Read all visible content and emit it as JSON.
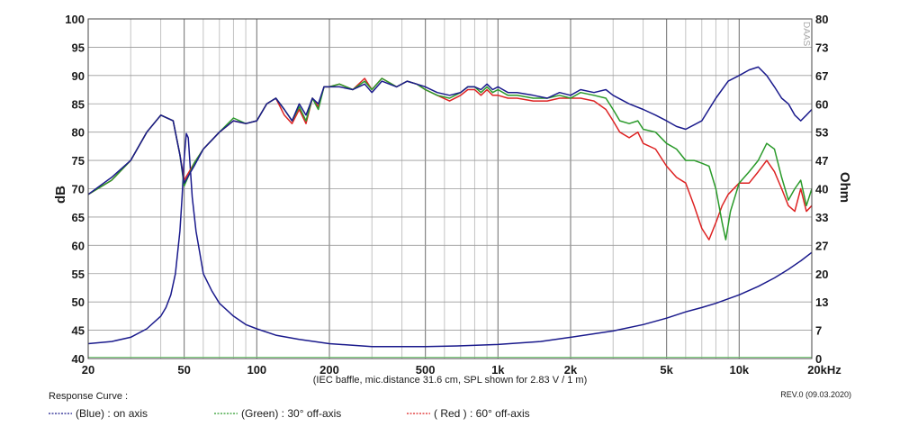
{
  "chart_data": {
    "type": "line",
    "xscale": "log",
    "xlim": [
      20,
      20000
    ],
    "ylim": [
      40,
      100
    ],
    "ylabel": "dB",
    "y2lim": [
      0,
      80
    ],
    "y2label": "Ohm",
    "x_ticks": [
      {
        "value": 20,
        "label": "20"
      },
      {
        "value": 50,
        "label": "50"
      },
      {
        "value": 100,
        "label": "100"
      },
      {
        "value": 200,
        "label": "200"
      },
      {
        "value": 500,
        "label": "500"
      },
      {
        "value": 1000,
        "label": "1k"
      },
      {
        "value": 2000,
        "label": "2k"
      },
      {
        "value": 5000,
        "label": "5k"
      },
      {
        "value": 10000,
        "label": "10k"
      },
      {
        "value": 20000,
        "label": "20kHz"
      }
    ],
    "y_ticks": [
      "40",
      "45",
      "50",
      "55",
      "60",
      "65",
      "70",
      "75",
      "80",
      "85",
      "90",
      "95",
      "100"
    ],
    "y2_ticks": [
      "0",
      "7",
      "13",
      "20",
      "27",
      "33",
      "40",
      "47",
      "53",
      "60",
      "67",
      "73",
      "80"
    ],
    "grid": true,
    "note": "(IEC baffle, mic.distance 31.6 cm, SPL shown for 2.83 V / 1 m)",
    "watermark": "DAAS",
    "series": [
      {
        "name": "(Blue) : on axis",
        "color": "#1a1a8c",
        "axis": "left",
        "points": [
          [
            20,
            69
          ],
          [
            25,
            72
          ],
          [
            30,
            75
          ],
          [
            35,
            80
          ],
          [
            40,
            83
          ],
          [
            45,
            82
          ],
          [
            48,
            76
          ],
          [
            50,
            71
          ],
          [
            55,
            74
          ],
          [
            60,
            77
          ],
          [
            70,
            80
          ],
          [
            80,
            82
          ],
          [
            90,
            81.5
          ],
          [
            100,
            82
          ],
          [
            110,
            85
          ],
          [
            120,
            86
          ],
          [
            130,
            84
          ],
          [
            140,
            82
          ],
          [
            150,
            85
          ],
          [
            160,
            83
          ],
          [
            170,
            86
          ],
          [
            180,
            85
          ],
          [
            190,
            88
          ],
          [
            200,
            88
          ],
          [
            220,
            88
          ],
          [
            250,
            87.5
          ],
          [
            280,
            88.5
          ],
          [
            300,
            87
          ],
          [
            330,
            89
          ],
          [
            380,
            88
          ],
          [
            420,
            89
          ],
          [
            460,
            88.5
          ],
          [
            500,
            88
          ],
          [
            560,
            87
          ],
          [
            630,
            86.5
          ],
          [
            700,
            87
          ],
          [
            750,
            88
          ],
          [
            800,
            88
          ],
          [
            850,
            87.5
          ],
          [
            900,
            88.5
          ],
          [
            950,
            87.5
          ],
          [
            1000,
            88
          ],
          [
            1100,
            87
          ],
          [
            1200,
            87
          ],
          [
            1400,
            86.5
          ],
          [
            1600,
            86
          ],
          [
            1800,
            87
          ],
          [
            2000,
            86.5
          ],
          [
            2200,
            87.5
          ],
          [
            2500,
            87
          ],
          [
            2800,
            87.5
          ],
          [
            3000,
            86.5
          ],
          [
            3500,
            85
          ],
          [
            4000,
            84
          ],
          [
            4500,
            83
          ],
          [
            5000,
            82
          ],
          [
            5500,
            81
          ],
          [
            6000,
            80.5
          ],
          [
            7000,
            82
          ],
          [
            8000,
            86
          ],
          [
            9000,
            89
          ],
          [
            10000,
            90
          ],
          [
            11000,
            91
          ],
          [
            12000,
            91.5
          ],
          [
            13000,
            90
          ],
          [
            14000,
            88
          ],
          [
            15000,
            86
          ],
          [
            16000,
            85
          ],
          [
            17000,
            83
          ],
          [
            18000,
            82
          ],
          [
            19000,
            83
          ],
          [
            20000,
            84
          ]
        ]
      },
      {
        "name": "(Green) : 30° off-axis",
        "color": "#2a9a2a",
        "axis": "left",
        "points": [
          [
            20,
            69
          ],
          [
            25,
            71.5
          ],
          [
            30,
            75
          ],
          [
            35,
            80
          ],
          [
            40,
            83
          ],
          [
            45,
            82
          ],
          [
            48,
            76
          ],
          [
            50,
            70.5
          ],
          [
            55,
            74.5
          ],
          [
            60,
            77
          ],
          [
            70,
            80
          ],
          [
            80,
            82.5
          ],
          [
            90,
            81.5
          ],
          [
            100,
            82
          ],
          [
            110,
            85
          ],
          [
            120,
            86
          ],
          [
            130,
            84
          ],
          [
            140,
            82
          ],
          [
            150,
            84.5
          ],
          [
            160,
            82
          ],
          [
            170,
            86
          ],
          [
            180,
            84
          ],
          [
            190,
            88
          ],
          [
            200,
            88
          ],
          [
            220,
            88.5
          ],
          [
            250,
            87.5
          ],
          [
            280,
            89
          ],
          [
            300,
            87.5
          ],
          [
            330,
            89.5
          ],
          [
            380,
            88
          ],
          [
            420,
            89
          ],
          [
            460,
            88.5
          ],
          [
            500,
            87.5
          ],
          [
            560,
            86.5
          ],
          [
            630,
            86
          ],
          [
            700,
            87
          ],
          [
            750,
            88
          ],
          [
            800,
            88
          ],
          [
            850,
            87
          ],
          [
            900,
            88
          ],
          [
            950,
            87
          ],
          [
            1000,
            87.5
          ],
          [
            1100,
            86.5
          ],
          [
            1200,
            86.5
          ],
          [
            1400,
            86
          ],
          [
            1600,
            86
          ],
          [
            1800,
            86.5
          ],
          [
            2000,
            86
          ],
          [
            2200,
            87
          ],
          [
            2500,
            86.5
          ],
          [
            2800,
            86
          ],
          [
            3000,
            84
          ],
          [
            3200,
            82
          ],
          [
            3500,
            81.5
          ],
          [
            3800,
            82
          ],
          [
            4000,
            80.5
          ],
          [
            4500,
            80
          ],
          [
            5000,
            78
          ],
          [
            5500,
            77
          ],
          [
            6000,
            75
          ],
          [
            6500,
            75
          ],
          [
            7000,
            74.5
          ],
          [
            7500,
            74
          ],
          [
            8000,
            70
          ],
          [
            8500,
            64
          ],
          [
            8800,
            61
          ],
          [
            9200,
            66
          ],
          [
            10000,
            71
          ],
          [
            11000,
            73
          ],
          [
            12000,
            75
          ],
          [
            13000,
            78
          ],
          [
            14000,
            77
          ],
          [
            15000,
            72
          ],
          [
            16000,
            68
          ],
          [
            17000,
            70
          ],
          [
            18000,
            71.5
          ],
          [
            19000,
            67
          ],
          [
            20000,
            70
          ]
        ]
      },
      {
        "name": "( Red ) : 60° off-axis",
        "color": "#dd2222",
        "axis": "left",
        "points": [
          [
            20,
            69
          ],
          [
            25,
            71.5
          ],
          [
            30,
            75
          ],
          [
            35,
            80
          ],
          [
            40,
            83
          ],
          [
            45,
            82
          ],
          [
            48,
            76
          ],
          [
            50,
            71.5
          ],
          [
            55,
            74.5
          ],
          [
            60,
            77
          ],
          [
            70,
            80
          ],
          [
            80,
            82
          ],
          [
            90,
            81.5
          ],
          [
            100,
            82
          ],
          [
            110,
            85
          ],
          [
            120,
            86
          ],
          [
            130,
            83
          ],
          [
            140,
            81.5
          ],
          [
            150,
            84
          ],
          [
            160,
            81.5
          ],
          [
            170,
            86
          ],
          [
            180,
            84.5
          ],
          [
            190,
            88
          ],
          [
            200,
            88
          ],
          [
            220,
            88.5
          ],
          [
            250,
            87.5
          ],
          [
            280,
            89.5
          ],
          [
            300,
            87.5
          ],
          [
            330,
            89.5
          ],
          [
            380,
            88
          ],
          [
            420,
            89
          ],
          [
            460,
            88.5
          ],
          [
            500,
            87.5
          ],
          [
            560,
            86.5
          ],
          [
            630,
            85.5
          ],
          [
            700,
            86.5
          ],
          [
            750,
            87.5
          ],
          [
            800,
            87.5
          ],
          [
            850,
            86.5
          ],
          [
            900,
            87.5
          ],
          [
            950,
            86.5
          ],
          [
            1000,
            86.5
          ],
          [
            1100,
            86
          ],
          [
            1200,
            86
          ],
          [
            1400,
            85.5
          ],
          [
            1600,
            85.5
          ],
          [
            1800,
            86
          ],
          [
            2000,
            86
          ],
          [
            2200,
            86
          ],
          [
            2500,
            85.5
          ],
          [
            2800,
            84
          ],
          [
            3000,
            82
          ],
          [
            3200,
            80
          ],
          [
            3500,
            79
          ],
          [
            3800,
            80
          ],
          [
            4000,
            78
          ],
          [
            4500,
            77
          ],
          [
            5000,
            74
          ],
          [
            5500,
            72
          ],
          [
            6000,
            71
          ],
          [
            6500,
            67
          ],
          [
            7000,
            63
          ],
          [
            7500,
            61
          ],
          [
            8000,
            64
          ],
          [
            8500,
            67
          ],
          [
            9000,
            69
          ],
          [
            10000,
            71
          ],
          [
            11000,
            71
          ],
          [
            12000,
            73
          ],
          [
            13000,
            75
          ],
          [
            14000,
            73
          ],
          [
            15000,
            70
          ],
          [
            16000,
            67
          ],
          [
            17000,
            66
          ],
          [
            18000,
            70
          ],
          [
            19000,
            66
          ],
          [
            20000,
            67
          ]
        ]
      },
      {
        "name": "Impedance",
        "color": "#1a1a8c",
        "axis": "right",
        "points": [
          [
            20,
            3.5
          ],
          [
            25,
            4
          ],
          [
            30,
            5
          ],
          [
            35,
            7
          ],
          [
            40,
            10
          ],
          [
            42,
            12
          ],
          [
            44,
            15
          ],
          [
            46,
            20
          ],
          [
            47,
            25
          ],
          [
            48,
            30
          ],
          [
            49,
            38
          ],
          [
            50,
            47
          ],
          [
            51,
            53
          ],
          [
            52,
            52
          ],
          [
            53,
            45
          ],
          [
            54,
            38
          ],
          [
            56,
            30
          ],
          [
            58,
            25
          ],
          [
            60,
            20
          ],
          [
            65,
            16
          ],
          [
            70,
            13
          ],
          [
            80,
            10
          ],
          [
            90,
            8
          ],
          [
            100,
            7
          ],
          [
            120,
            5.5
          ],
          [
            150,
            4.5
          ],
          [
            200,
            3.5
          ],
          [
            300,
            2.8
          ],
          [
            500,
            2.8
          ],
          [
            700,
            3
          ],
          [
            1000,
            3.3
          ],
          [
            1500,
            4
          ],
          [
            2000,
            5
          ],
          [
            3000,
            6.5
          ],
          [
            4000,
            8
          ],
          [
            5000,
            9.5
          ],
          [
            6000,
            11
          ],
          [
            7000,
            12
          ],
          [
            8000,
            13
          ],
          [
            10000,
            15
          ],
          [
            12000,
            17
          ],
          [
            14000,
            19
          ],
          [
            16000,
            21
          ],
          [
            18000,
            23
          ],
          [
            20000,
            25
          ]
        ]
      }
    ]
  },
  "legend": {
    "title": "Response Curve :",
    "revision": "REV.0 (09.03.2020)"
  }
}
